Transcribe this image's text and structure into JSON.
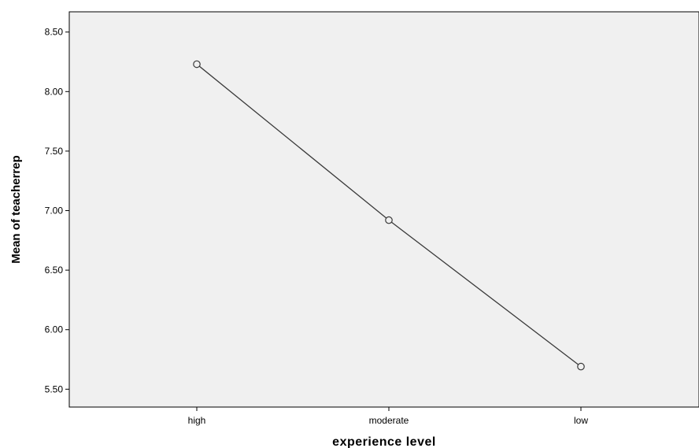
{
  "chart_data": {
    "type": "line",
    "title": "",
    "xlabel": "experience level",
    "ylabel": "Mean of teacherrep",
    "categories": [
      "high",
      "moderate",
      "low"
    ],
    "series": [
      {
        "values": [
          8.23,
          6.92,
          5.69
        ]
      }
    ],
    "ylim": [
      5.35,
      8.67
    ],
    "yticks": [
      "5.50",
      "6.00",
      "6.50",
      "7.00",
      "7.50",
      "8.00",
      "8.50"
    ],
    "ytick_values": [
      5.5,
      6.0,
      6.5,
      7.0,
      7.5,
      8.0,
      8.5
    ],
    "grid": false,
    "legend": "none",
    "marker": "open-circle",
    "colors": {
      "plot_background": "#f0f0f0",
      "line": "#3a3a3a",
      "axis": "#000000",
      "marker_fill": "#f0f0f0"
    }
  }
}
